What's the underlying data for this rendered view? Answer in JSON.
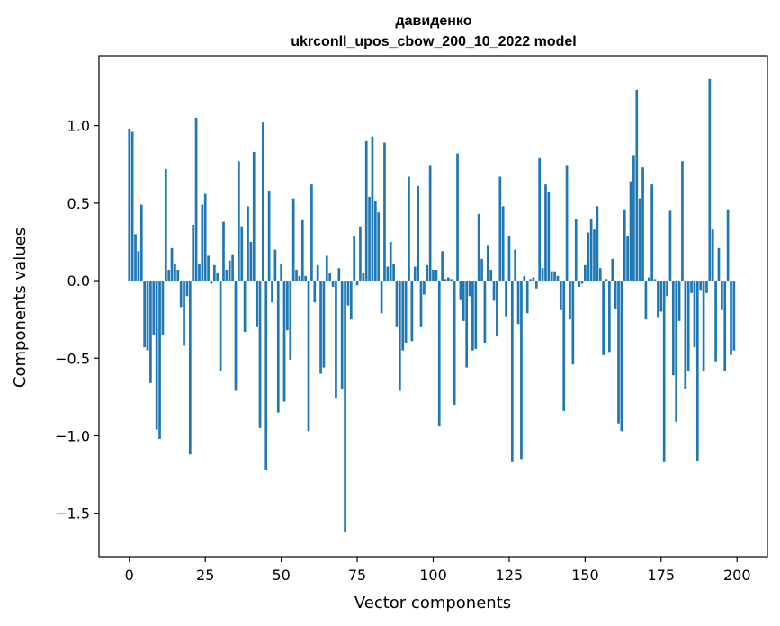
{
  "chart_data": {
    "type": "bar",
    "title": "давиденко",
    "subtitle": "ukrconll_upos_cbow_200_10_2022 model",
    "xlabel": "Vector components",
    "ylabel": "Components values",
    "xlim": [
      -10,
      210
    ],
    "ylim": [
      -1.78,
      1.45
    ],
    "xticks": [
      0,
      25,
      50,
      75,
      100,
      125,
      150,
      175,
      200
    ],
    "xtick_labels": [
      "0",
      "25",
      "50",
      "75",
      "100",
      "125",
      "150",
      "175",
      "200"
    ],
    "yticks": [
      -1.5,
      -1.0,
      -0.5,
      0.0,
      0.5,
      1.0
    ],
    "ytick_labels": [
      "−1.5",
      "−1.0",
      "−0.5",
      "0.0",
      "0.5",
      "1.0"
    ],
    "grid": false,
    "bar_color": "#1f77b4",
    "values": [
      0.98,
      0.96,
      0.3,
      0.19,
      0.49,
      -0.43,
      -0.45,
      -0.66,
      -0.35,
      -0.96,
      -1.02,
      -0.35,
      0.72,
      0.07,
      0.21,
      0.11,
      0.07,
      -0.17,
      -0.42,
      -0.1,
      -1.12,
      0.36,
      1.05,
      0.11,
      0.49,
      0.56,
      0.16,
      -0.02,
      0.1,
      0.05,
      -0.58,
      0.38,
      0.07,
      0.13,
      0.17,
      -0.71,
      0.77,
      0.35,
      -0.33,
      0.48,
      0.25,
      0.83,
      -0.3,
      -0.95,
      1.02,
      -1.22,
      0.58,
      -0.14,
      0.2,
      -0.85,
      0.11,
      -0.78,
      -0.32,
      -0.51,
      0.53,
      0.07,
      0.03,
      0.39,
      0.03,
      -0.97,
      0.62,
      -0.14,
      0.1,
      -0.6,
      -0.56,
      0.16,
      0.05,
      -0.04,
      -0.76,
      0.08,
      -0.7,
      -1.62,
      -0.16,
      -0.25,
      0.29,
      -0.03,
      0.35,
      0.05,
      0.9,
      0.54,
      0.93,
      0.51,
      0.44,
      -0.21,
      0.89,
      0.09,
      0.25,
      0.11,
      -0.3,
      -0.71,
      -0.45,
      -0.4,
      0.67,
      -0.39,
      0.09,
      0.61,
      -0.3,
      -0.09,
      0.1,
      0.74,
      0.07,
      0.07,
      -0.94,
      0.19,
      0.01,
      0.02,
      0.01,
      -0.8,
      0.82,
      -0.12,
      -0.26,
      -0.56,
      -0.1,
      -0.45,
      -0.44,
      0.43,
      0.14,
      -0.4,
      0.23,
      0.07,
      -0.13,
      -0.36,
      0.67,
      0.48,
      -0.23,
      0.29,
      -1.17,
      0.2,
      -0.28,
      -1.15,
      0.03,
      -0.21,
      0.01,
      0.02,
      -0.05,
      0.79,
      0.08,
      0.62,
      0.57,
      0.06,
      0.06,
      0.03,
      -0.19,
      -0.84,
      0.74,
      -0.25,
      -0.54,
      0.4,
      -0.04,
      -0.02,
      0.1,
      0.31,
      0.4,
      0.33,
      0.48,
      0.08,
      -0.48,
      0.01,
      -0.46,
      0.14,
      -0.18,
      -0.92,
      -0.97,
      0.46,
      0.29,
      0.64,
      0.81,
      1.23,
      0.53,
      0.73,
      -0.25,
      0.02,
      0.62,
      0.01,
      -0.24,
      -0.2,
      -1.17,
      -0.1,
      0.45,
      -0.61,
      -0.91,
      -0.26,
      0.77,
      -0.7,
      -0.58,
      -0.08,
      -0.43,
      -1.16,
      -0.06,
      -0.58,
      -0.08,
      1.3,
      0.33,
      -0.52,
      0.21,
      -0.19,
      -0.58,
      0.46,
      -0.48,
      -0.45
    ]
  }
}
